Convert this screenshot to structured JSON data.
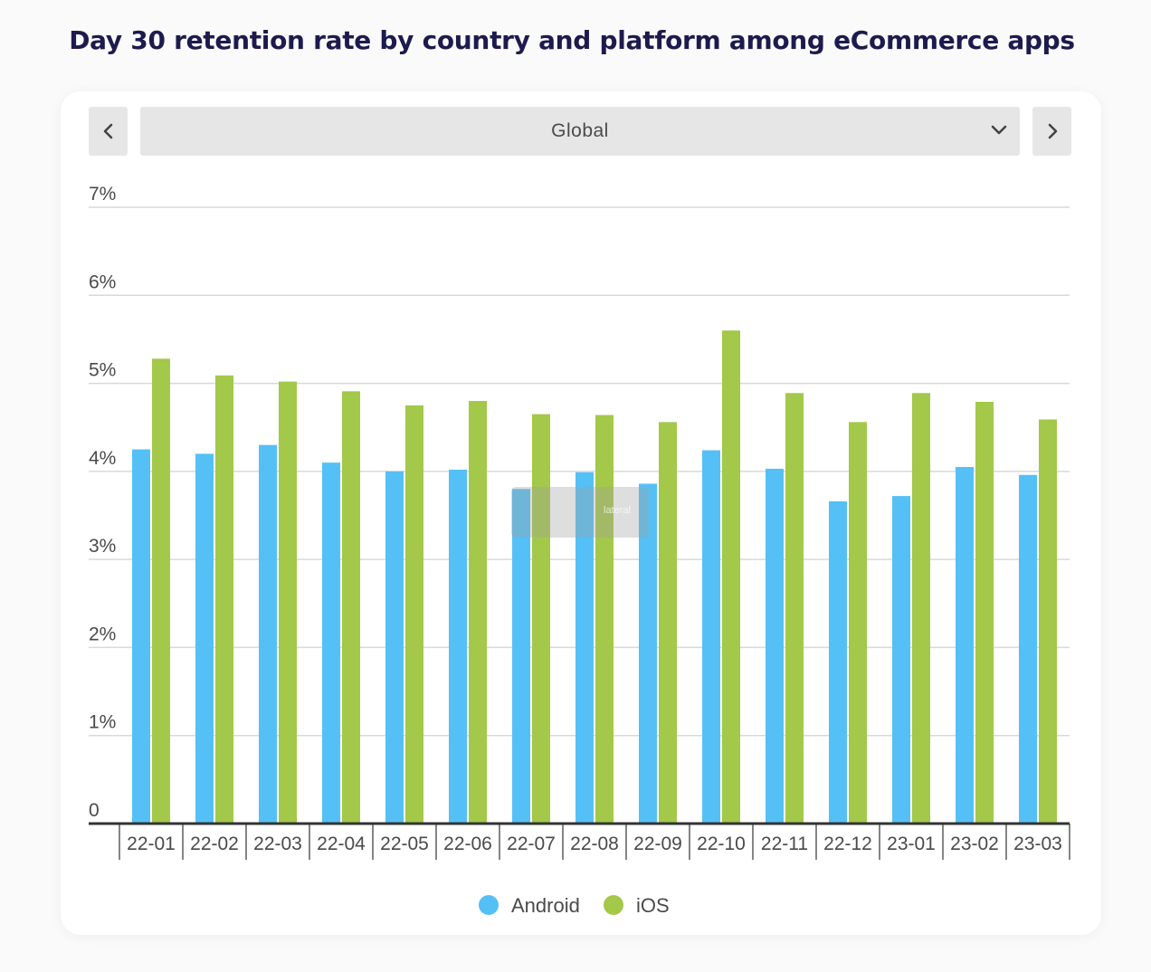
{
  "title": "Day 30 retention rate by country and platform among eCommerce apps",
  "selector": {
    "value": "Global",
    "prev_icon": "chevron-left-icon",
    "next_icon": "chevron-right-icon",
    "dropdown_icon": "chevron-down-icon"
  },
  "watermark": {
    "text": "lateral"
  },
  "colors": {
    "android": "#55c0f6",
    "ios": "#a3c84a",
    "axis": "#333333",
    "grid": "#d9d9d9"
  },
  "chart_data": {
    "type": "bar",
    "categories": [
      "22-01",
      "22-02",
      "22-03",
      "22-04",
      "22-05",
      "22-06",
      "22-07",
      "22-08",
      "22-09",
      "22-10",
      "22-11",
      "22-12",
      "23-01",
      "23-02",
      "23-03"
    ],
    "series": [
      {
        "name": "Android",
        "values": [
          4.25,
          4.2,
          4.3,
          4.1,
          4.0,
          4.02,
          3.8,
          3.99,
          3.86,
          4.24,
          4.03,
          3.66,
          3.72,
          4.05,
          3.96
        ]
      },
      {
        "name": "iOS",
        "values": [
          5.28,
          5.09,
          5.02,
          4.91,
          4.75,
          4.8,
          4.65,
          4.64,
          4.56,
          5.6,
          4.89,
          4.56,
          4.89,
          4.79,
          4.59
        ]
      }
    ],
    "yticks": [
      "0",
      "1%",
      "2%",
      "3%",
      "4%",
      "5%",
      "6%",
      "7%"
    ],
    "ylim": [
      0,
      7
    ],
    "legend": [
      "Android",
      "iOS"
    ],
    "legend_position": "bottom",
    "grid": true
  }
}
